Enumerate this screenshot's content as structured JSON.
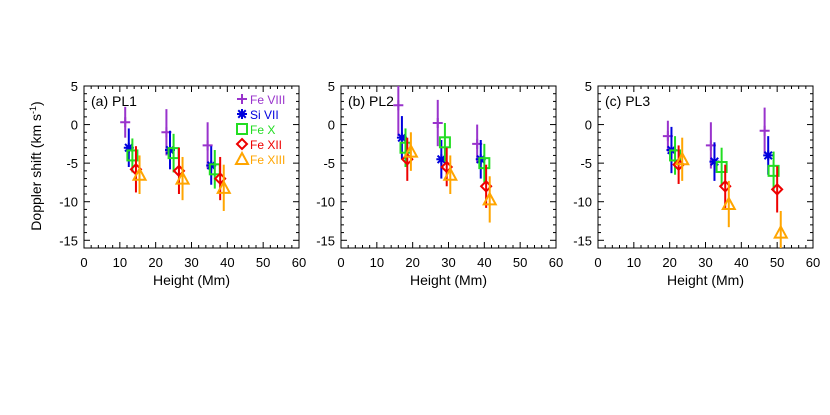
{
  "figure": {
    "ylabel_main": "Doppler shift (km s",
    "ylabel_sup": "-1",
    "ylabel_close": ")"
  },
  "legend": [
    {
      "name": "Fe VIII",
      "color": "#9933cc",
      "marker": "plus"
    },
    {
      "name": "Si VII",
      "color": "#0000dd",
      "marker": "asterisk"
    },
    {
      "name": "Fe X",
      "color": "#22dd22",
      "marker": "square"
    },
    {
      "name": "Fe XII",
      "color": "#ee0000",
      "marker": "diamond"
    },
    {
      "name": "Fe XIII",
      "color": "#ffa500",
      "marker": "triangle"
    }
  ],
  "chart_data": [
    {
      "type": "scatter",
      "panel_label": "(a) PL1",
      "xlabel": "Height (Mm)",
      "xlim": [
        0,
        60
      ],
      "ylim": [
        -16,
        5
      ],
      "xticks": [
        0,
        10,
        20,
        30,
        40,
        50,
        60
      ],
      "yticks": [
        5,
        0,
        -5,
        -10,
        -15
      ],
      "legend_position": "top-right",
      "series": [
        {
          "name": "Fe VIII",
          "points": [
            {
              "x": 11.5,
              "y": 0.3,
              "err": 2.0
            },
            {
              "x": 23.0,
              "y": -1.0,
              "err": 3.0
            },
            {
              "x": 34.5,
              "y": -2.7,
              "err": 3.0
            }
          ]
        },
        {
          "name": "Si VII",
          "points": [
            {
              "x": 12.5,
              "y": -3.0,
              "err": 2.5
            },
            {
              "x": 24.0,
              "y": -3.3,
              "err": 2.5
            },
            {
              "x": 35.5,
              "y": -5.3,
              "err": 2.5
            }
          ]
        },
        {
          "name": "Fe X",
          "points": [
            {
              "x": 13.5,
              "y": -4.0,
              "err": 2.2
            },
            {
              "x": 25.0,
              "y": -3.7,
              "err": 2.5
            },
            {
              "x": 36.5,
              "y": -5.8,
              "err": 2.5
            }
          ]
        },
        {
          "name": "Fe XII",
          "points": [
            {
              "x": 14.5,
              "y": -5.8,
              "err": 3.0
            },
            {
              "x": 26.5,
              "y": -6.0,
              "err": 3.0
            },
            {
              "x": 38.0,
              "y": -7.0,
              "err": 2.8
            }
          ]
        },
        {
          "name": "Fe XIII",
          "points": [
            {
              "x": 15.5,
              "y": -6.5,
              "err": 2.5
            },
            {
              "x": 27.5,
              "y": -7.0,
              "err": 2.8
            },
            {
              "x": 39.0,
              "y": -8.2,
              "err": 3.0
            }
          ]
        }
      ]
    },
    {
      "type": "scatter",
      "panel_label": "(b) PL2",
      "xlabel": "Height (Mm)",
      "xlim": [
        0,
        60
      ],
      "ylim": [
        -16,
        5
      ],
      "xticks": [
        0,
        10,
        20,
        30,
        40,
        50,
        60
      ],
      "yticks": [
        5,
        0,
        -5,
        -10,
        -15
      ],
      "series": [
        {
          "name": "Fe VIII",
          "points": [
            {
              "x": 16.0,
              "y": 2.5,
              "err": 4.0
            },
            {
              "x": 27.0,
              "y": 0.2,
              "err": 3.0
            },
            {
              "x": 38.0,
              "y": -2.5,
              "err": 2.5
            }
          ]
        },
        {
          "name": "Si VII",
          "points": [
            {
              "x": 17.0,
              "y": -1.7,
              "err": 2.8
            },
            {
              "x": 28.0,
              "y": -4.5,
              "err": 2.5
            },
            {
              "x": 39.0,
              "y": -4.5,
              "err": 2.5
            }
          ]
        },
        {
          "name": "Fe X",
          "points": [
            {
              "x": 18.0,
              "y": -3.0,
              "err": 2.5
            },
            {
              "x": 29.0,
              "y": -2.3,
              "err": 2.5
            },
            {
              "x": 40.0,
              "y": -5.0,
              "err": 2.5
            }
          ]
        },
        {
          "name": "Fe XII",
          "points": [
            {
              "x": 18.5,
              "y": -4.5,
              "err": 2.8
            },
            {
              "x": 29.5,
              "y": -5.5,
              "err": 2.5
            },
            {
              "x": 40.5,
              "y": -8.0,
              "err": 2.8
            }
          ]
        },
        {
          "name": "Fe XIII",
          "points": [
            {
              "x": 19.5,
              "y": -3.5,
              "err": 2.5
            },
            {
              "x": 30.5,
              "y": -6.5,
              "err": 2.5
            },
            {
              "x": 41.5,
              "y": -9.7,
              "err": 3.0
            }
          ]
        }
      ]
    },
    {
      "type": "scatter",
      "panel_label": "(c) PL3",
      "xlabel": "Height (Mm)",
      "xlim": [
        0,
        60
      ],
      "ylim": [
        -16,
        5
      ],
      "xticks": [
        0,
        10,
        20,
        30,
        40,
        50,
        60
      ],
      "yticks": [
        5,
        0,
        -5,
        -10,
        -15
      ],
      "series": [
        {
          "name": "Fe VIII",
          "points": [
            {
              "x": 19.5,
              "y": -1.5,
              "err": 2.0
            },
            {
              "x": 31.5,
              "y": -2.7,
              "err": 3.0
            },
            {
              "x": 46.5,
              "y": -0.8,
              "err": 3.0
            }
          ]
        },
        {
          "name": "Si VII",
          "points": [
            {
              "x": 20.5,
              "y": -3.3,
              "err": 3.0
            },
            {
              "x": 32.5,
              "y": -4.8,
              "err": 2.5
            },
            {
              "x": 47.5,
              "y": -4.0,
              "err": 2.5
            }
          ]
        },
        {
          "name": "Fe X",
          "points": [
            {
              "x": 21.5,
              "y": -4.0,
              "err": 2.5
            },
            {
              "x": 34.5,
              "y": -5.5,
              "err": 2.5
            },
            {
              "x": 49.0,
              "y": -6.0,
              "err": 2.5
            }
          ]
        },
        {
          "name": "Fe XII",
          "points": [
            {
              "x": 22.5,
              "y": -5.2,
              "err": 2.5
            },
            {
              "x": 35.5,
              "y": -8.0,
              "err": 2.8
            },
            {
              "x": 50.0,
              "y": -8.4,
              "err": 3.0
            }
          ]
        },
        {
          "name": "Fe XIII",
          "points": [
            {
              "x": 23.5,
              "y": -4.5,
              "err": 2.8
            },
            {
              "x": 36.5,
              "y": -10.3,
              "err": 3.0
            },
            {
              "x": 51.0,
              "y": -14.0,
              "err": 2.8
            }
          ]
        }
      ]
    }
  ]
}
